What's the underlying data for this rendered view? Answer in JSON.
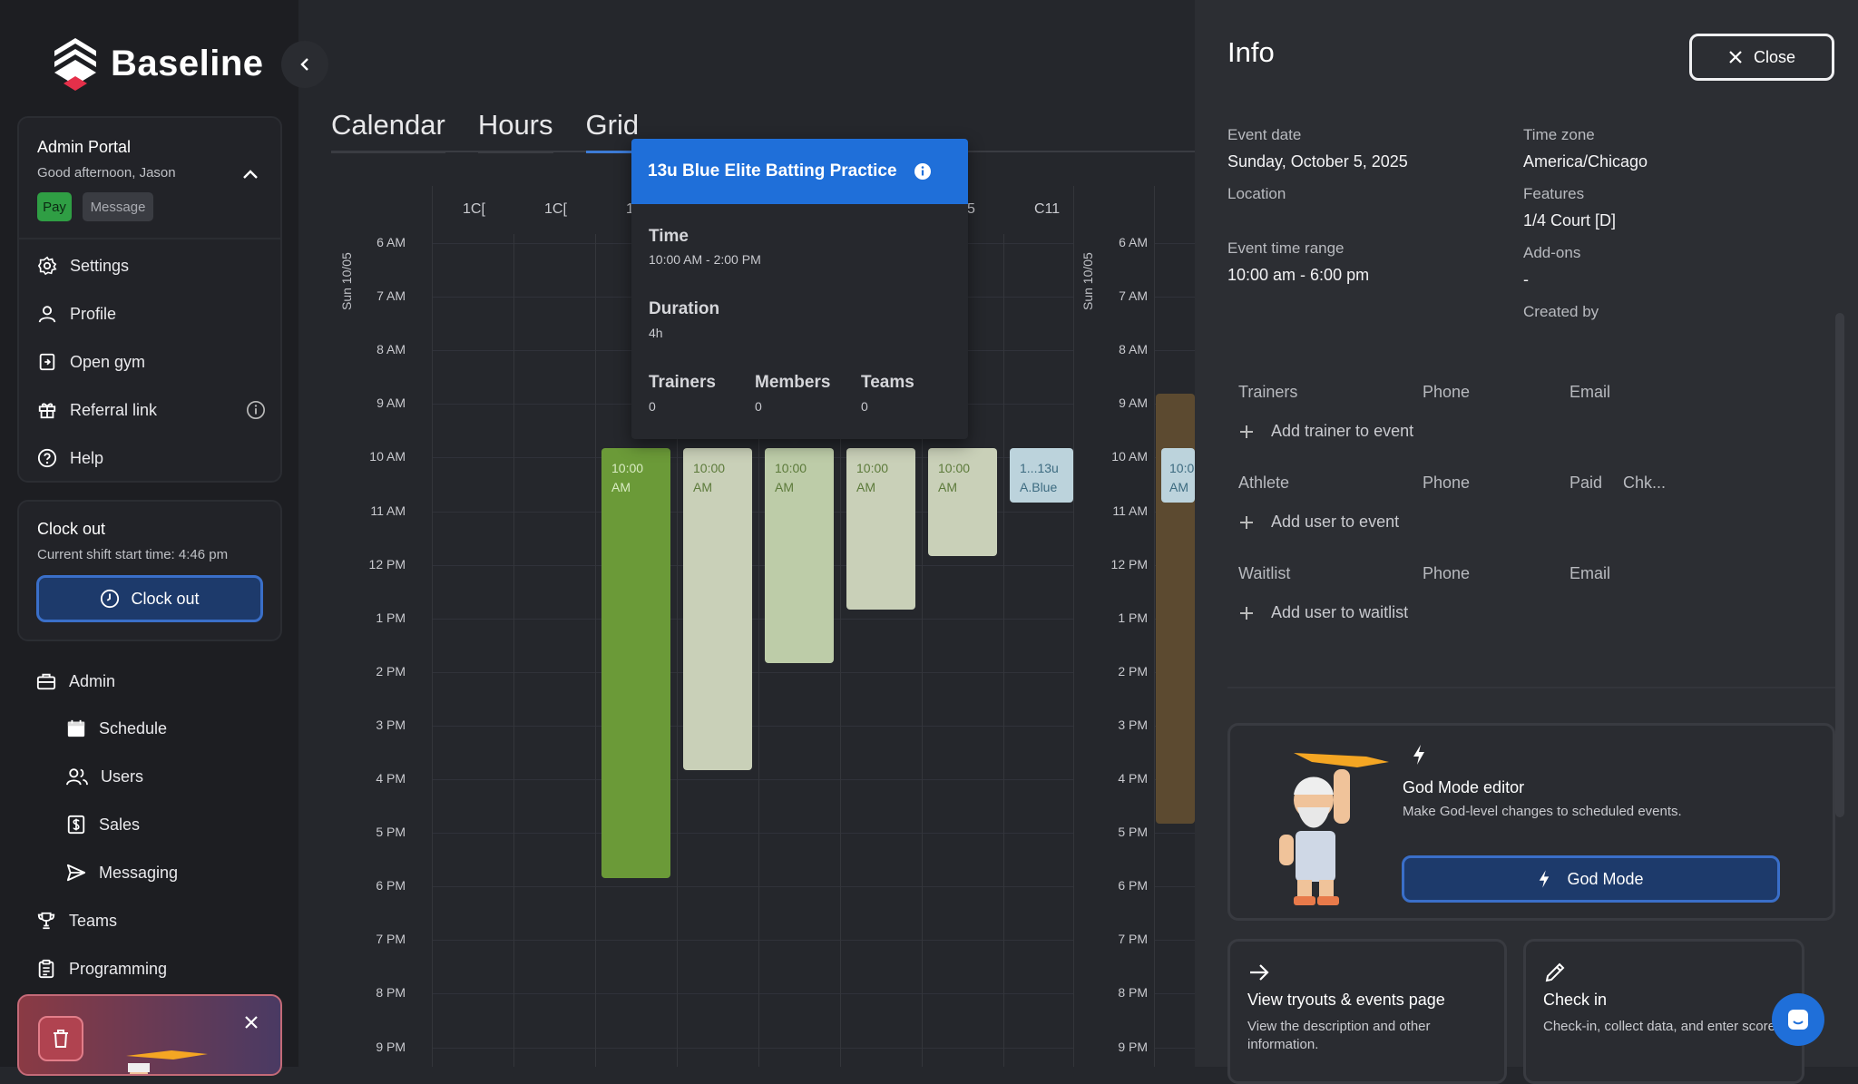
{
  "sidebar": {
    "brand": "Baseline",
    "portal": {
      "title": "Admin Portal",
      "greeting": "Good afternoon, Jason",
      "pay": "Pay",
      "message": "Message"
    },
    "menu": [
      "Settings",
      "Profile",
      "Open gym",
      "Referral link",
      "Help"
    ],
    "clock": {
      "title": "Clock out",
      "subtitle": "Current shift start time: 4:46 pm",
      "button": "Clock out"
    },
    "nav": {
      "admin": "Admin",
      "schedule": "Schedule",
      "users": "Users",
      "sales": "Sales",
      "messaging": "Messaging",
      "teams": "Teams",
      "programming": "Programming"
    }
  },
  "calendar": {
    "tabs": [
      "Calendar",
      "Hours",
      "Grid"
    ],
    "active_tab": "Grid",
    "date_label": "Sun 10/05",
    "columns": [
      "1C[",
      "1C[",
      "1",
      "5",
      "C11"
    ],
    "times": [
      "6 AM",
      "7 AM",
      "8 AM",
      "9 AM",
      "10 AM",
      "11 AM",
      "12 PM",
      "1 PM",
      "2 PM",
      "3 PM",
      "4 PM",
      "5 PM",
      "6 PM",
      "7 PM",
      "8 PM",
      "9 PM"
    ],
    "events": [
      {
        "label_1": "10:00",
        "label_2": "AM"
      },
      {
        "label_1": "10:00",
        "label_2": "AM"
      },
      {
        "label_1": "10:00",
        "label_2": "AM"
      },
      {
        "label_1": "10:00",
        "label_2": "AM"
      },
      {
        "label_1": "10:00",
        "label_2": "AM"
      },
      {
        "label_1": "1...13u",
        "label_2": "A.Blue"
      },
      {
        "label_1": "10:0",
        "label_2": "AM"
      }
    ]
  },
  "popover": {
    "title": "13u Blue Elite Batting Practice",
    "time_label": "Time",
    "time_value": "10:00 AM - 2:00 PM",
    "duration_label": "Duration",
    "duration_value": "4h",
    "trainers_label": "Trainers",
    "trainers_value": "0",
    "members_label": "Members",
    "members_value": "0",
    "teams_label": "Teams",
    "teams_value": "0"
  },
  "info": {
    "title": "Info",
    "close": "Close",
    "event_date_label": "Event date",
    "event_date": "Sunday, October 5, 2025",
    "time_zone_label": "Time zone",
    "time_zone": "America/Chicago",
    "location_label": "Location",
    "features_label": "Features",
    "features": "1/4 Court [D]",
    "time_range_label": "Event time range",
    "time_range": "10:00 am - 6:00 pm",
    "addons_label": "Add-ons",
    "addons": "-",
    "created_by_label": "Created by",
    "trainers_head": [
      "Trainers",
      "Phone",
      "Email"
    ],
    "add_trainer": "Add trainer to event",
    "athlete_head": [
      "Athlete",
      "Phone",
      "Paid",
      "Chk..."
    ],
    "add_user": "Add user to event",
    "waitlist_head": [
      "Waitlist",
      "Phone",
      "Email"
    ],
    "add_waitlist": "Add user to waitlist",
    "god": {
      "title": "God Mode editor",
      "subtitle": "Make God-level changes to scheduled events.",
      "button": "God Mode"
    },
    "view_card": {
      "title": "View tryouts & events page",
      "subtitle": "View the description and other information."
    },
    "checkin_card": {
      "title": "Check in",
      "subtitle": "Check-in, collect data, and enter scores."
    }
  }
}
